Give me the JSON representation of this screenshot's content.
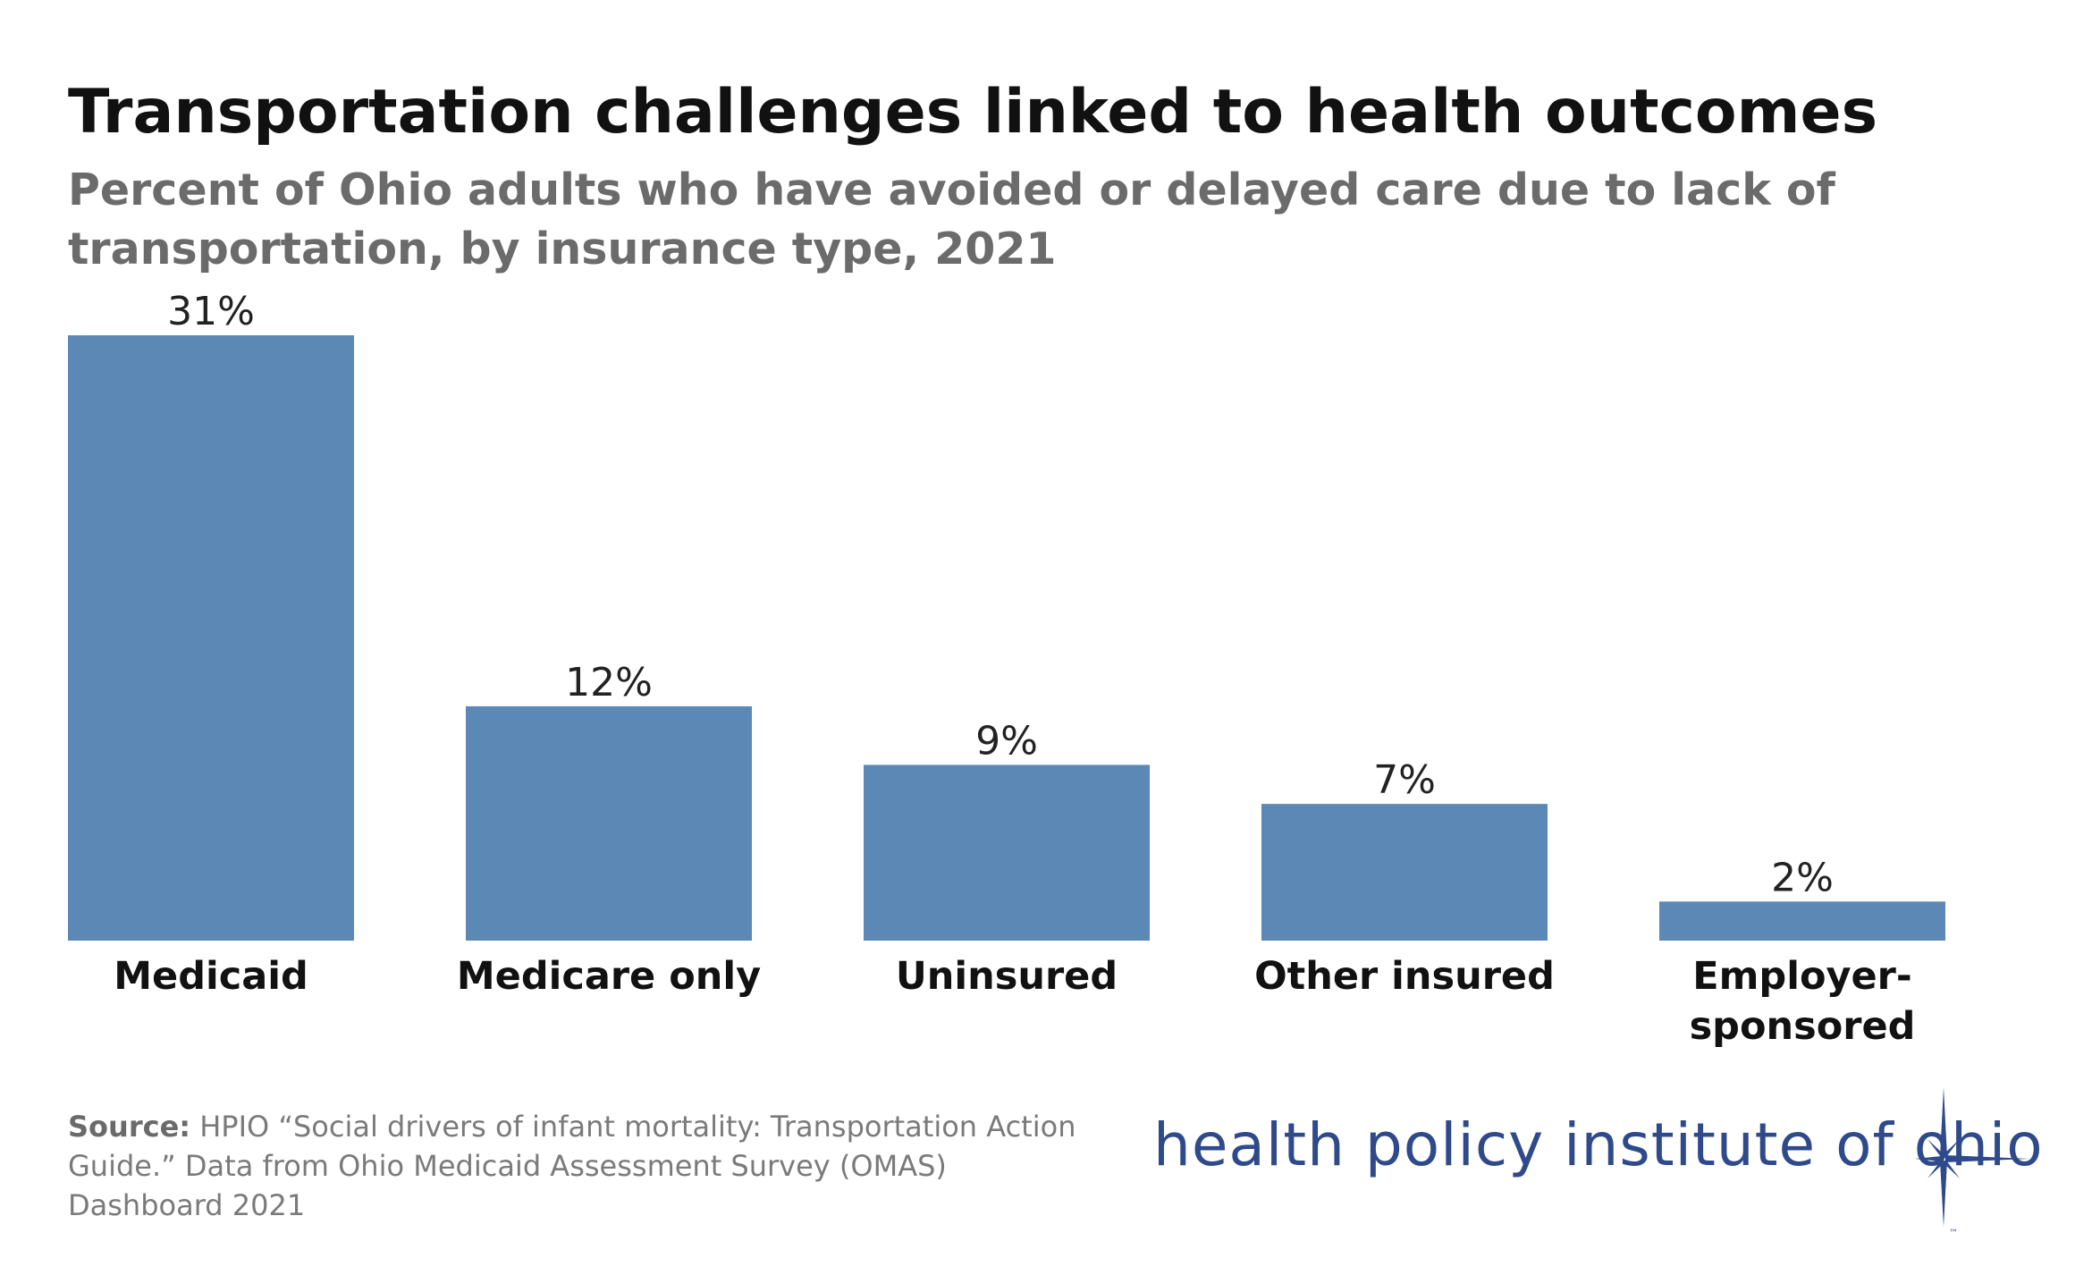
{
  "chart_data": {
    "type": "bar",
    "title": "Transportation challenges linked to health outcomes",
    "subtitle": "Percent of Ohio adults who have avoided or delayed care due to lack of transportation, by insurance type, 2021",
    "categories": [
      "Medicaid",
      "Medicare only",
      "Uninsured",
      "Other insured",
      "Employer-sponsored"
    ],
    "category_lines": [
      [
        "Medicaid"
      ],
      [
        "Medicare only"
      ],
      [
        "Uninsured"
      ],
      [
        "Other insured"
      ],
      [
        "Employer-",
        "sponsored"
      ]
    ],
    "values": [
      31,
      12,
      9,
      7,
      2
    ],
    "value_labels": [
      "31%",
      "12%",
      "9%",
      "7%",
      "2%"
    ],
    "xlabel": "",
    "ylabel": "",
    "ylim": [
      0,
      31
    ],
    "grid": false,
    "legend": "none",
    "bar_color": "#5b88b5"
  },
  "source": {
    "label": "Source:",
    "text": " HPIO “Social drivers of infant mortality: Transportation Action Guide.” Data from Ohio Medicaid Assessment Survey (OMAS) Dashboard 2021"
  },
  "logo": {
    "text": "health policy institute of ohio",
    "icon": "compass-star-icon",
    "color": "#2f4a8a"
  }
}
